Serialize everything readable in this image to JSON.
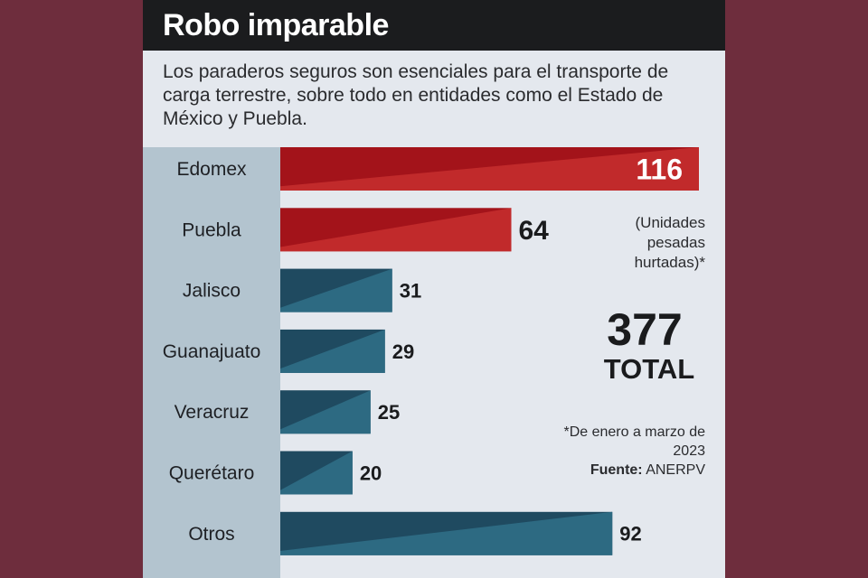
{
  "header": {
    "title": "Robo imparable",
    "subtitle": "Los paraderos seguros son esenciales para el transporte de carga terrestre, sobre todo en entidades como el Estado de México y Puebla."
  },
  "chart_data": {
    "type": "bar",
    "orientation": "horizontal",
    "categories": [
      "Edomex",
      "Puebla",
      "Jalisco",
      "Guanajuato",
      "Veracruz",
      "Querétaro",
      "Otros"
    ],
    "values": [
      116,
      64,
      31,
      29,
      25,
      20,
      92
    ],
    "data_labels": [
      "116",
      "64",
      "31",
      "29",
      "25",
      "20",
      "92"
    ],
    "title": "",
    "xlabel": "",
    "ylabel": "",
    "xlim": [
      0,
      116
    ],
    "grid": false,
    "legend": "none",
    "colors": {
      "highlight": "#a3131a",
      "highlight_light": "#c12a2b",
      "default": "#1f4a60",
      "default_light": "#2d6a82"
    },
    "highlight_categories": [
      "Edomex",
      "Puebla"
    ]
  },
  "annotations": {
    "units_note": "(Unidades pesadas hurtadas)*",
    "total_value": "377",
    "total_label": "TOTAL",
    "period_note": "*De enero a marzo de 2023",
    "source_label": "Fuente:",
    "source_value": "ANERPV"
  }
}
